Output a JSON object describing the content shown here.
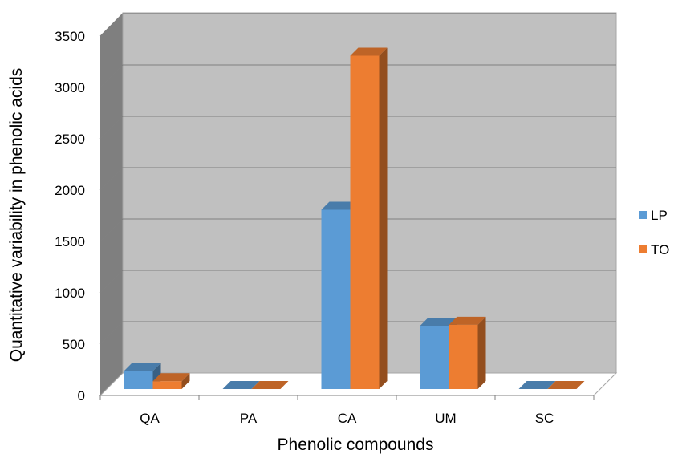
{
  "chart_data": {
    "type": "bar",
    "title": "",
    "xlabel": "Phenolic compounds",
    "ylabel": "Quantitative variability in phenolic acids",
    "categories": [
      "QA",
      "PA",
      "CA",
      "UM",
      "SC"
    ],
    "series": [
      {
        "name": "LP",
        "color": "#5b9bd5",
        "values": [
          270,
          15,
          1840,
          710,
          5
        ]
      },
      {
        "name": "TO",
        "color": "#ed7d31",
        "values": [
          170,
          30,
          3340,
          720,
          60
        ]
      }
    ],
    "ylim": [
      0,
      3500
    ],
    "yticks": [
      "0",
      "500",
      "1000",
      "1500",
      "2000",
      "2500",
      "3000",
      "3500"
    ],
    "grid": true,
    "legend_position": "right",
    "style": "3d-clustered-column"
  }
}
